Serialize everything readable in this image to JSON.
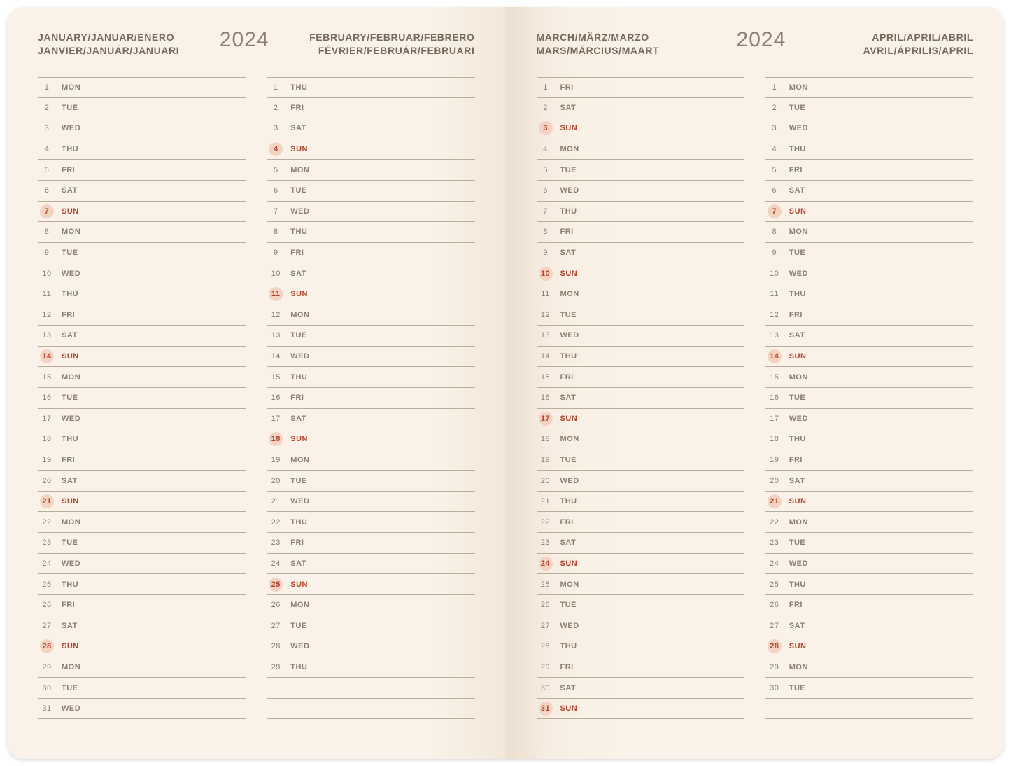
{
  "year": "2024",
  "colors": {
    "text": "#8a7f70",
    "rule": "#b9ad9b",
    "sunday_text": "#b0462f",
    "sunday_badge": "#f3d4c2",
    "page_bg": "#faf2e8"
  },
  "left_page": {
    "month_left_line1": "JANUARY/JANUAR/ENERO",
    "month_left_line2": "JANVIER/JANUÁR/JANUARI",
    "month_right_line1": "FEBRUARY/FEBRUAR/FEBRERO",
    "month_right_line2": "FÉVRIER/FEBRUÁR/FEBRUARI",
    "col1": [
      {
        "n": "1",
        "d": "MON"
      },
      {
        "n": "2",
        "d": "TUE"
      },
      {
        "n": "3",
        "d": "WED"
      },
      {
        "n": "4",
        "d": "THU"
      },
      {
        "n": "5",
        "d": "FRI"
      },
      {
        "n": "6",
        "d": "SAT"
      },
      {
        "n": "7",
        "d": "SUN",
        "s": true
      },
      {
        "n": "8",
        "d": "MON"
      },
      {
        "n": "9",
        "d": "TUE"
      },
      {
        "n": "10",
        "d": "WED"
      },
      {
        "n": "11",
        "d": "THU"
      },
      {
        "n": "12",
        "d": "FRI"
      },
      {
        "n": "13",
        "d": "SAT"
      },
      {
        "n": "14",
        "d": "SUN",
        "s": true
      },
      {
        "n": "15",
        "d": "MON"
      },
      {
        "n": "16",
        "d": "TUE"
      },
      {
        "n": "17",
        "d": "WED"
      },
      {
        "n": "18",
        "d": "THU"
      },
      {
        "n": "19",
        "d": "FRI"
      },
      {
        "n": "20",
        "d": "SAT"
      },
      {
        "n": "21",
        "d": "SUN",
        "s": true
      },
      {
        "n": "22",
        "d": "MON"
      },
      {
        "n": "23",
        "d": "TUE"
      },
      {
        "n": "24",
        "d": "WED"
      },
      {
        "n": "25",
        "d": "THU"
      },
      {
        "n": "26",
        "d": "FRI"
      },
      {
        "n": "27",
        "d": "SAT"
      },
      {
        "n": "28",
        "d": "SUN",
        "s": true
      },
      {
        "n": "29",
        "d": "MON"
      },
      {
        "n": "30",
        "d": "TUE"
      },
      {
        "n": "31",
        "d": "WED"
      }
    ],
    "col2": [
      {
        "n": "1",
        "d": "THU"
      },
      {
        "n": "2",
        "d": "FRI"
      },
      {
        "n": "3",
        "d": "SAT"
      },
      {
        "n": "4",
        "d": "SUN",
        "s": true
      },
      {
        "n": "5",
        "d": "MON"
      },
      {
        "n": "6",
        "d": "TUE"
      },
      {
        "n": "7",
        "d": "WED"
      },
      {
        "n": "8",
        "d": "THU"
      },
      {
        "n": "9",
        "d": "FRI"
      },
      {
        "n": "10",
        "d": "SAT"
      },
      {
        "n": "11",
        "d": "SUN",
        "s": true
      },
      {
        "n": "12",
        "d": "MON"
      },
      {
        "n": "13",
        "d": "TUE"
      },
      {
        "n": "14",
        "d": "WED"
      },
      {
        "n": "15",
        "d": "THU"
      },
      {
        "n": "16",
        "d": "FRI"
      },
      {
        "n": "17",
        "d": "SAT"
      },
      {
        "n": "18",
        "d": "SUN",
        "s": true
      },
      {
        "n": "19",
        "d": "MON"
      },
      {
        "n": "20",
        "d": "TUE"
      },
      {
        "n": "21",
        "d": "WED"
      },
      {
        "n": "22",
        "d": "THU"
      },
      {
        "n": "23",
        "d": "FRI"
      },
      {
        "n": "24",
        "d": "SAT"
      },
      {
        "n": "25",
        "d": "SUN",
        "s": true
      },
      {
        "n": "26",
        "d": "MON"
      },
      {
        "n": "27",
        "d": "TUE"
      },
      {
        "n": "28",
        "d": "WED"
      },
      {
        "n": "29",
        "d": "THU"
      }
    ]
  },
  "right_page": {
    "month_left_line1": "MARCH/MÄRZ/MARZO",
    "month_left_line2": "MARS/MÁRCIUS/MAART",
    "month_right_line1": "APRIL/APRIL/ABRIL",
    "month_right_line2": "AVRIL/ÁPRILIS/APRIL",
    "col1": [
      {
        "n": "1",
        "d": "FRI"
      },
      {
        "n": "2",
        "d": "SAT"
      },
      {
        "n": "3",
        "d": "SUN",
        "s": true
      },
      {
        "n": "4",
        "d": "MON"
      },
      {
        "n": "5",
        "d": "TUE"
      },
      {
        "n": "6",
        "d": "WED"
      },
      {
        "n": "7",
        "d": "THU"
      },
      {
        "n": "8",
        "d": "FRI"
      },
      {
        "n": "9",
        "d": "SAT"
      },
      {
        "n": "10",
        "d": "SUN",
        "s": true
      },
      {
        "n": "11",
        "d": "MON"
      },
      {
        "n": "12",
        "d": "TUE"
      },
      {
        "n": "13",
        "d": "WED"
      },
      {
        "n": "14",
        "d": "THU"
      },
      {
        "n": "15",
        "d": "FRI"
      },
      {
        "n": "16",
        "d": "SAT"
      },
      {
        "n": "17",
        "d": "SUN",
        "s": true
      },
      {
        "n": "18",
        "d": "MON"
      },
      {
        "n": "19",
        "d": "TUE"
      },
      {
        "n": "20",
        "d": "WED"
      },
      {
        "n": "21",
        "d": "THU"
      },
      {
        "n": "22",
        "d": "FRI"
      },
      {
        "n": "23",
        "d": "SAT"
      },
      {
        "n": "24",
        "d": "SUN",
        "s": true
      },
      {
        "n": "25",
        "d": "MON"
      },
      {
        "n": "26",
        "d": "TUE"
      },
      {
        "n": "27",
        "d": "WED"
      },
      {
        "n": "28",
        "d": "THU"
      },
      {
        "n": "29",
        "d": "FRI"
      },
      {
        "n": "30",
        "d": "SAT"
      },
      {
        "n": "31",
        "d": "SUN",
        "s": true
      }
    ],
    "col2": [
      {
        "n": "1",
        "d": "MON"
      },
      {
        "n": "2",
        "d": "TUE"
      },
      {
        "n": "3",
        "d": "WED"
      },
      {
        "n": "4",
        "d": "THU"
      },
      {
        "n": "5",
        "d": "FRI"
      },
      {
        "n": "6",
        "d": "SAT"
      },
      {
        "n": "7",
        "d": "SUN",
        "s": true
      },
      {
        "n": "8",
        "d": "MON"
      },
      {
        "n": "9",
        "d": "TUE"
      },
      {
        "n": "10",
        "d": "WED"
      },
      {
        "n": "11",
        "d": "THU"
      },
      {
        "n": "12",
        "d": "FRI"
      },
      {
        "n": "13",
        "d": "SAT"
      },
      {
        "n": "14",
        "d": "SUN",
        "s": true
      },
      {
        "n": "15",
        "d": "MON"
      },
      {
        "n": "16",
        "d": "TUE"
      },
      {
        "n": "17",
        "d": "WED"
      },
      {
        "n": "18",
        "d": "THU"
      },
      {
        "n": "19",
        "d": "FRI"
      },
      {
        "n": "20",
        "d": "SAT"
      },
      {
        "n": "21",
        "d": "SUN",
        "s": true
      },
      {
        "n": "22",
        "d": "MON"
      },
      {
        "n": "23",
        "d": "TUE"
      },
      {
        "n": "24",
        "d": "WED"
      },
      {
        "n": "25",
        "d": "THU"
      },
      {
        "n": "26",
        "d": "FRI"
      },
      {
        "n": "27",
        "d": "SAT"
      },
      {
        "n": "28",
        "d": "SUN",
        "s": true
      },
      {
        "n": "29",
        "d": "MON"
      },
      {
        "n": "30",
        "d": "TUE"
      }
    ]
  }
}
